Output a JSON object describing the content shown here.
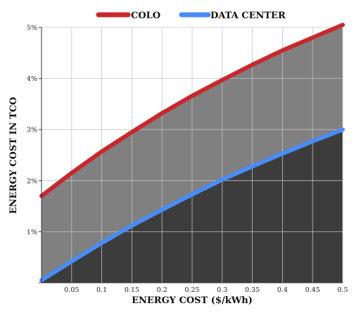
{
  "chart_data": {
    "type": "area",
    "title": "",
    "xlabel": "ENERGY COST ($/kWh)",
    "ylabel": "ENERGY COST IN TCO",
    "xlim": [
      0,
      0.5
    ],
    "ylim": [
      0,
      5
    ],
    "x_ticks": [
      0.05,
      0.1,
      0.15,
      0.2,
      0.25,
      0.3,
      0.35,
      0.4,
      0.45,
      0.5
    ],
    "x_tick_labels": [
      "0.05",
      "0.1",
      "0.15",
      "0.2",
      "0.25",
      "0.3",
      "0.35",
      "0.4",
      "0.45",
      "0.5"
    ],
    "y_ticks": [
      1,
      2,
      3,
      4,
      5
    ],
    "y_tick_labels": [
      "1%",
      "2%",
      "3%",
      "4%",
      "5%"
    ],
    "y_unit": "%",
    "grid": true,
    "legend_position": "top-center",
    "x": [
      0.0,
      0.05,
      0.1,
      0.15,
      0.2,
      0.25,
      0.3,
      0.35,
      0.4,
      0.45,
      0.5
    ],
    "series": [
      {
        "name": "COLO",
        "color": "#c8282d",
        "fill": "#808080",
        "values": [
          1.7,
          2.15,
          2.57,
          2.95,
          3.32,
          3.66,
          3.97,
          4.27,
          4.55,
          4.8,
          5.05
        ]
      },
      {
        "name": "DATA CENTER",
        "color": "#4a8cf7",
        "fill": "#3c3c3c",
        "values": [
          0.05,
          0.42,
          0.78,
          1.12,
          1.43,
          1.73,
          2.02,
          2.28,
          2.53,
          2.77,
          3.0
        ]
      }
    ]
  }
}
